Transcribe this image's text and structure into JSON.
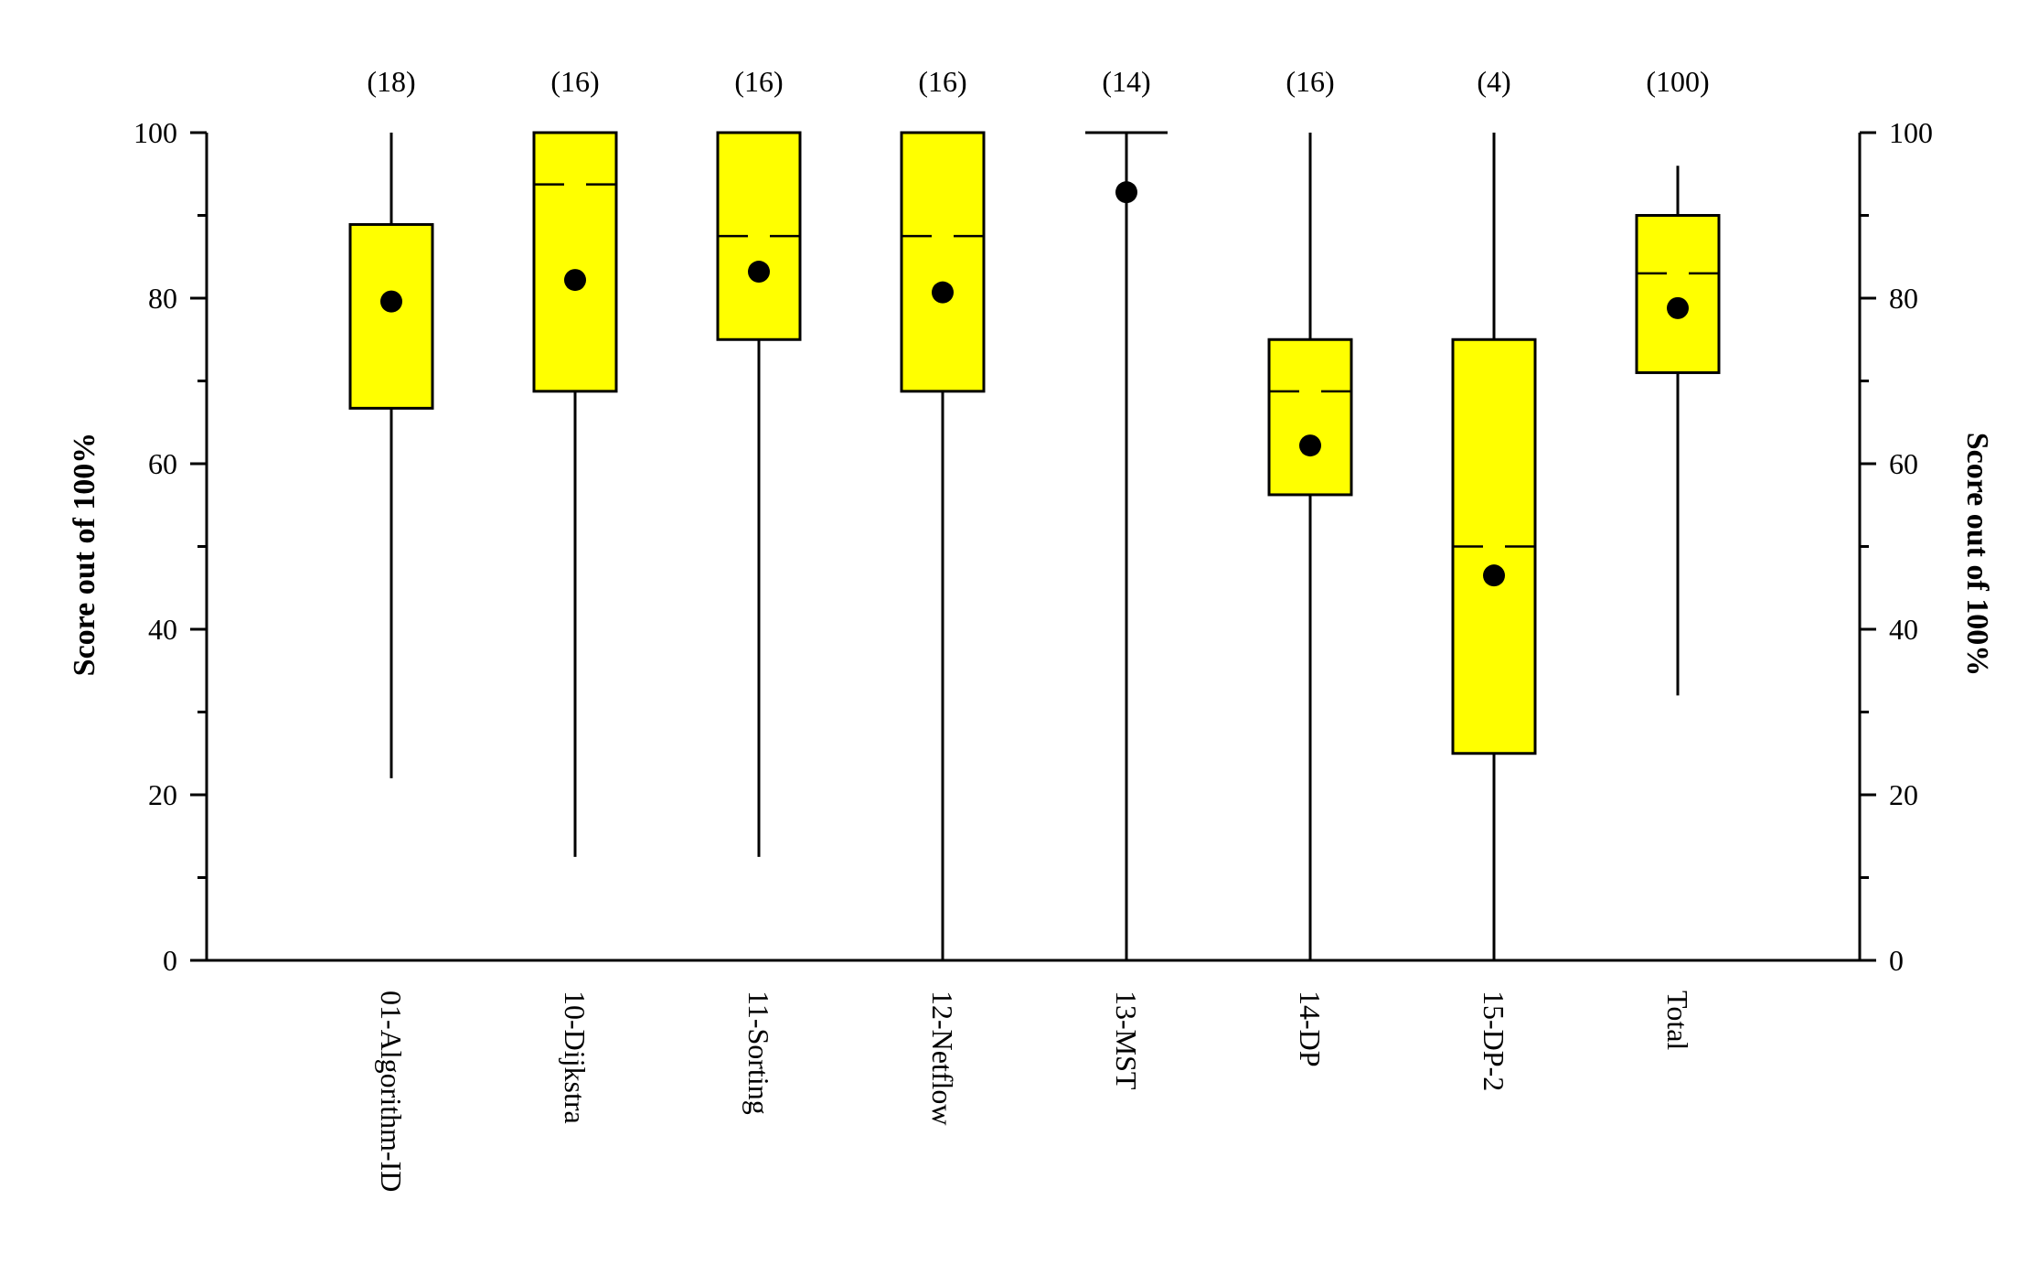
{
  "chart_data": {
    "type": "box",
    "ylabel": "Score out of 100%",
    "ylabel_right": "Score out of 100%",
    "ylim": [
      0,
      100
    ],
    "yticks": [
      0,
      20,
      40,
      60,
      80,
      100
    ],
    "ytick_labels": [
      "0",
      "20",
      "40",
      "60",
      "80",
      "100"
    ],
    "grid": false,
    "box_color": "#ffff00",
    "categories": [
      "01-Algorithm-ID",
      "10-Dijkstra",
      "11-Sorting",
      "12-Netflow",
      "13-MST",
      "14-DP",
      "15-DP-2",
      "Total"
    ],
    "counts": [
      "(18)",
      "(16)",
      "(16)",
      "(16)",
      "(14)",
      "(16)",
      "(4)",
      "(100)"
    ],
    "boxes": [
      {
        "min": 22,
        "q1": 66.7,
        "median": null,
        "q3": 88.9,
        "max": 100,
        "mean": 79.6
      },
      {
        "min": 12.5,
        "q1": 68.75,
        "median": 93.75,
        "q3": 100,
        "max": 100,
        "mean": 82.2
      },
      {
        "min": 12.5,
        "q1": 75,
        "median": 87.5,
        "q3": 100,
        "max": 100,
        "mean": 83.2
      },
      {
        "min": 0,
        "q1": 68.75,
        "median": 87.5,
        "q3": 100,
        "max": 100,
        "mean": 80.7
      },
      {
        "min": 0,
        "q1": 100,
        "median": 100,
        "q3": 100,
        "max": 100,
        "mean": 92.8
      },
      {
        "min": 0,
        "q1": 56.25,
        "median": 68.75,
        "q3": 75,
        "max": 100,
        "mean": 62.2
      },
      {
        "min": 0,
        "q1": 25,
        "median": 50,
        "q3": 75,
        "max": 100,
        "mean": 46.5
      },
      {
        "min": 32,
        "q1": 71,
        "median": 83,
        "q3": 90,
        "max": 96,
        "mean": 78.8
      }
    ]
  }
}
